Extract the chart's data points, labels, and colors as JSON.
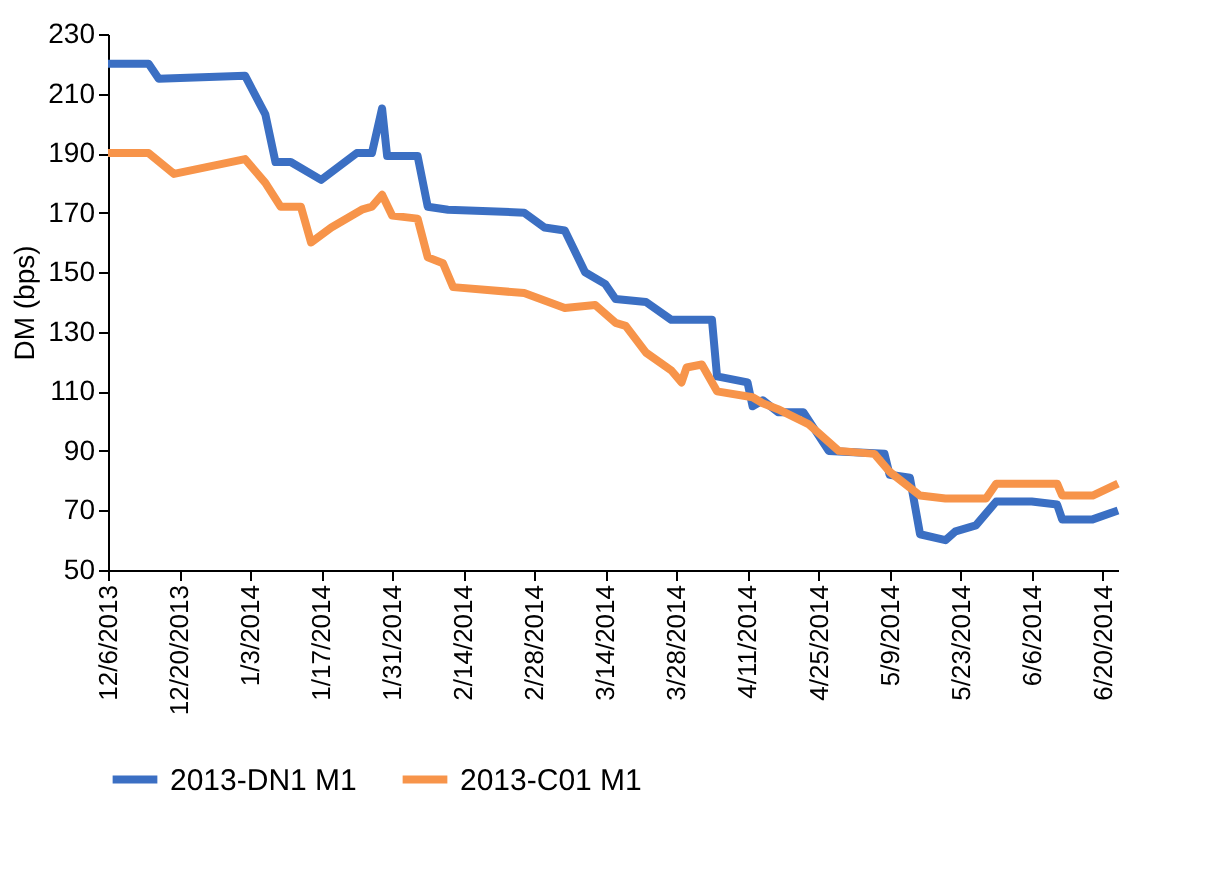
{
  "chart_data": {
    "type": "line",
    "ylabel": "DM (bps)",
    "legend": "bottom",
    "line_style": "solid",
    "grid": false,
    "xlim": [
      "2013-12-06",
      "2014-06-23"
    ],
    "xticks": [
      {
        "value": "2013-12-06",
        "label": "12/6/2013"
      },
      {
        "value": "2013-12-20",
        "label": "12/20/2013"
      },
      {
        "value": "2014-01-03",
        "label": "1/3/2014"
      },
      {
        "value": "2014-01-17",
        "label": "1/17/2014"
      },
      {
        "value": "2014-01-31",
        "label": "1/31/2014"
      },
      {
        "value": "2014-02-14",
        "label": "2/14/2014"
      },
      {
        "value": "2014-02-28",
        "label": "2/28/2014"
      },
      {
        "value": "2014-03-14",
        "label": "3/14/2014"
      },
      {
        "value": "2014-03-28",
        "label": "3/28/2014"
      },
      {
        "value": "2014-04-11",
        "label": "4/11/2014"
      },
      {
        "value": "2014-04-25",
        "label": "4/25/2014"
      },
      {
        "value": "2014-05-09",
        "label": "5/9/2014"
      },
      {
        "value": "2014-05-23",
        "label": "5/23/2014"
      },
      {
        "value": "2014-06-06",
        "label": "6/6/2014"
      },
      {
        "value": "2014-06-20",
        "label": "6/20/2014"
      }
    ],
    "ylim": [
      50,
      230
    ],
    "yticks": [
      50,
      70,
      90,
      110,
      130,
      150,
      170,
      190,
      210,
      230
    ],
    "series": [
      {
        "name": "2013-DN1  M1",
        "color": "#3b6fc3",
        "x": [
          "2013-12-06",
          "2013-12-14",
          "2013-12-16",
          "2014-01-02",
          "2014-01-06",
          "2014-01-08",
          "2014-01-11",
          "2014-01-17",
          "2014-01-24",
          "2014-01-27",
          "2014-01-29",
          "2014-01-30",
          "2014-02-05",
          "2014-02-07",
          "2014-02-11",
          "2014-02-26",
          "2014-03-02",
          "2014-03-06",
          "2014-03-10",
          "2014-03-14",
          "2014-03-16",
          "2014-03-22",
          "2014-03-27",
          "2014-04-04",
          "2014-04-05",
          "2014-04-11",
          "2014-04-12",
          "2014-04-14",
          "2014-04-17",
          "2014-04-22",
          "2014-04-27",
          "2014-05-08",
          "2014-05-09",
          "2014-05-13",
          "2014-05-15",
          "2014-05-20",
          "2014-05-22",
          "2014-05-26",
          "2014-05-30",
          "2014-06-06",
          "2014-06-11",
          "2014-06-12",
          "2014-06-18",
          "2014-06-23"
        ],
        "values": [
          220,
          220,
          215,
          216,
          203,
          187,
          187,
          181,
          190,
          190,
          205,
          189,
          189,
          172,
          171,
          170,
          165,
          164,
          150,
          146,
          141,
          140,
          134,
          134,
          115,
          113,
          105,
          107,
          103,
          103,
          90,
          89,
          82,
          81,
          62,
          60,
          63,
          65,
          73,
          73,
          72,
          67,
          67,
          70
        ]
      },
      {
        "name": "2013-C01 M1",
        "color": "#f7944a",
        "x": [
          "2013-12-06",
          "2013-12-14",
          "2013-12-19",
          "2014-01-02",
          "2014-01-06",
          "2014-01-09",
          "2014-01-13",
          "2014-01-15",
          "2014-01-19",
          "2014-01-25",
          "2014-01-27",
          "2014-01-29",
          "2014-01-31",
          "2014-02-05",
          "2014-02-07",
          "2014-02-10",
          "2014-02-12",
          "2014-02-26",
          "2014-03-06",
          "2014-03-12",
          "2014-03-16",
          "2014-03-18",
          "2014-03-22",
          "2014-03-27",
          "2014-03-29",
          "2014-03-30",
          "2014-04-02",
          "2014-04-05",
          "2014-04-12",
          "2014-04-14",
          "2014-04-17",
          "2014-04-23",
          "2014-04-29",
          "2014-05-06",
          "2014-05-09",
          "2014-05-15",
          "2014-05-20",
          "2014-05-28",
          "2014-05-30",
          "2014-06-11",
          "2014-06-12",
          "2014-06-18",
          "2014-06-23"
        ],
        "values": [
          190,
          190,
          183,
          188,
          180,
          172,
          172,
          160,
          165,
          171,
          172,
          176,
          169,
          168,
          155,
          153,
          145,
          143,
          138,
          139,
          133,
          132,
          123,
          117,
          113,
          118,
          119,
          110,
          108,
          106,
          104,
          99,
          90,
          89,
          83,
          75,
          74,
          74,
          79,
          79,
          75,
          75,
          79
        ]
      }
    ]
  }
}
